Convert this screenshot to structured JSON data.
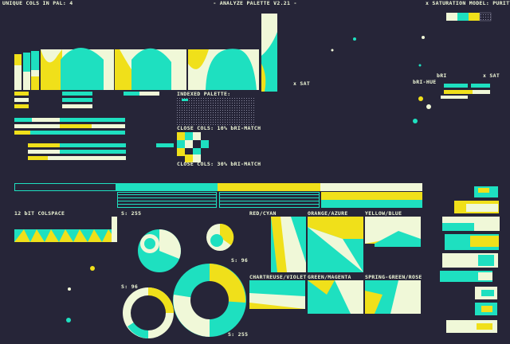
{
  "header": {
    "left": "UNIQUE COLS IN PAL: 4",
    "title": "- ANALYZE PALETTE V2.21 -",
    "right": "x SATURATION MODEL: PURITY"
  },
  "labels": {
    "sat_left": "x SAT",
    "bri": "bRI",
    "bri_hue": "bRI-HUE",
    "sat_right": "x SAT",
    "indexed": "INDEXED PALETTE:",
    "close10": "CLOSE COLS: 10% bRI-MATCH",
    "close30": "CLOSE COLS: 30% bRI-MATCH",
    "colspace": "12 bIT COLSPACE"
  },
  "circles": [
    "S: 255",
    "S: 96",
    "S: 96",
    "S: 255"
  ],
  "hue_panels": [
    "RED/CYAN",
    "ORANGE/AZURE",
    "YELLOW/BLUE",
    "CHARTREUSE/VIOLET",
    "GREEN/MAGENTA",
    "SPRING-GREEN/ROSE"
  ]
}
